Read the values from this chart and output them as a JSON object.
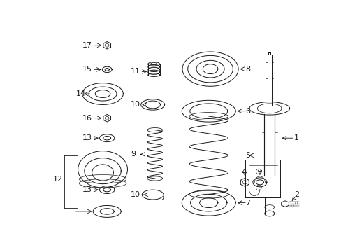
{
  "bg_color": "#ffffff",
  "line_color": "#1a1a1a",
  "line_width": 0.7,
  "fig_width": 4.89,
  "fig_height": 3.6,
  "dpi": 100,
  "label_fontsize": 8.0
}
